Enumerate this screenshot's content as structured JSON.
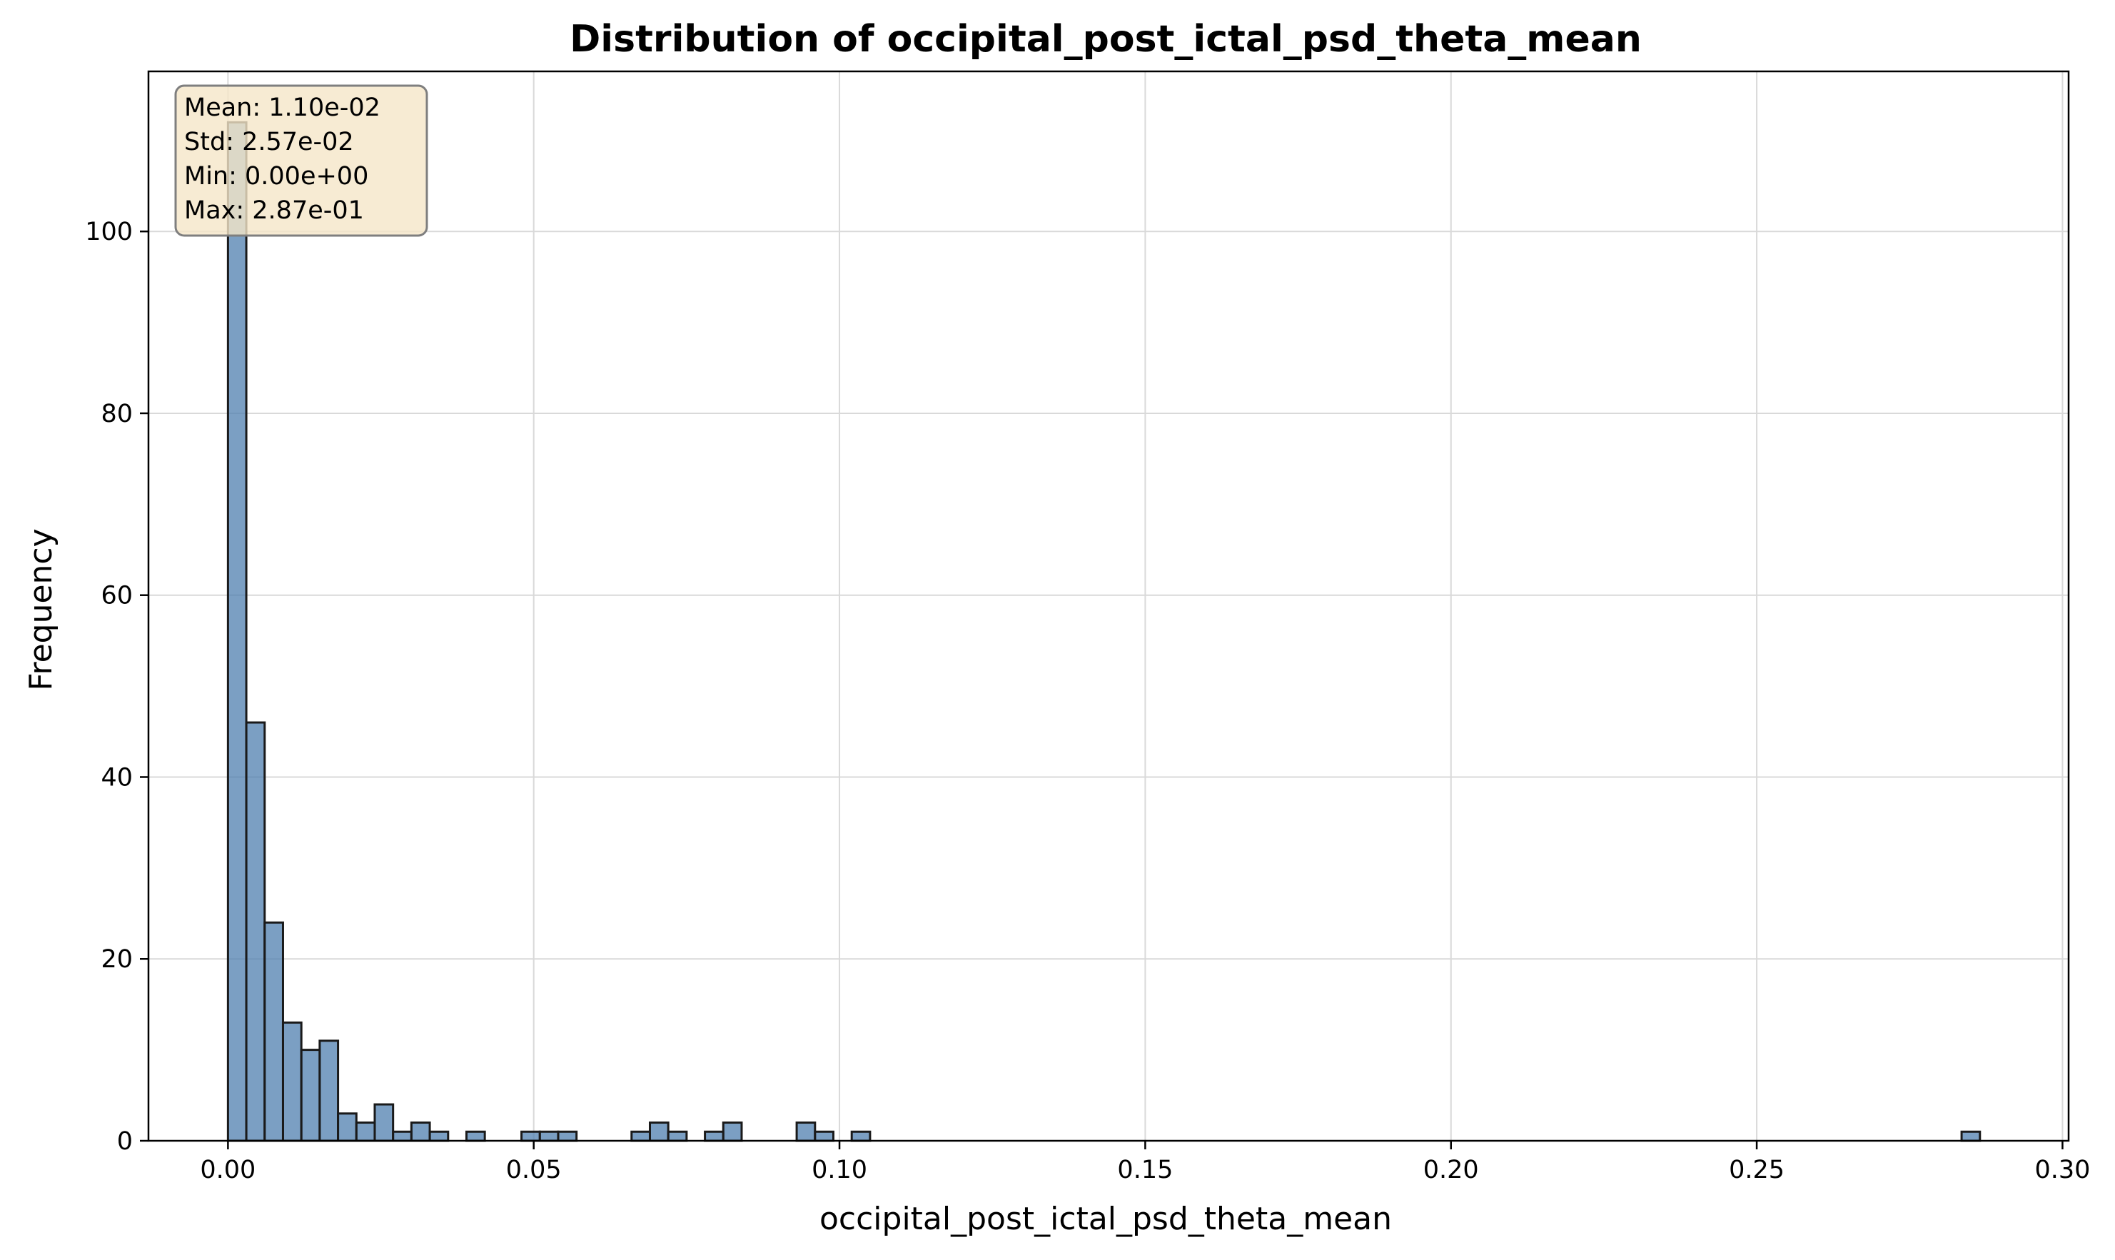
{
  "chart_data": {
    "type": "bar",
    "title": "Distribution of occipital_post_ictal_psd_theta_mean",
    "xlabel": "occipital_post_ictal_psd_theta_mean",
    "ylabel": "Frequency",
    "xlim": [
      -0.013,
      0.301
    ],
    "ylim": [
      0,
      117.6
    ],
    "xticks": [
      0.0,
      0.05,
      0.1,
      0.15,
      0.2,
      0.25,
      0.3
    ],
    "xtick_labels": [
      "0.00",
      "0.05",
      "0.10",
      "0.15",
      "0.20",
      "0.25",
      "0.30"
    ],
    "yticks": [
      0,
      20,
      40,
      60,
      80,
      100
    ],
    "ytick_labels": [
      "0",
      "20",
      "40",
      "60",
      "80",
      "100"
    ],
    "grid": true,
    "bin_width": 0.003,
    "bar_color": "#4f7faf",
    "bar_edge_color": "#1a1a1a",
    "bins_x": [
      0.0,
      0.003,
      0.006,
      0.009,
      0.012,
      0.015,
      0.018,
      0.021,
      0.024,
      0.027,
      0.03,
      0.033,
      0.039,
      0.048,
      0.051,
      0.054,
      0.066,
      0.069,
      0.072,
      0.078,
      0.081,
      0.093,
      0.096,
      0.102,
      0.2835
    ],
    "values": [
      112,
      46,
      24,
      13,
      10,
      11,
      3,
      2,
      4,
      1,
      2,
      1,
      1,
      1,
      1,
      1,
      1,
      2,
      1,
      1,
      2,
      2,
      1,
      1,
      1
    ],
    "stats_box": {
      "lines": [
        "Mean: 1.10e-02",
        "Std: 2.57e-02",
        "Min: 0.00e+00",
        "Max: 2.87e-01"
      ],
      "placement": "top-left",
      "background": "#f5e6c8",
      "border": "#7f7f7f"
    }
  }
}
